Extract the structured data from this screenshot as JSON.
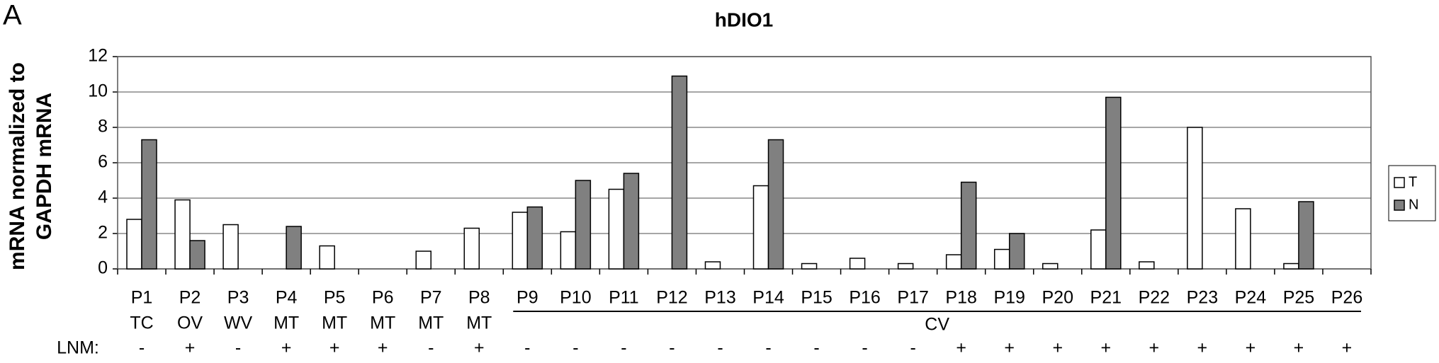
{
  "chart_data": {
    "type": "bar",
    "panel_label": "A",
    "title": "hDIO1",
    "y_label": [
      "mRNA normalized to",
      "GAPDH mRNA"
    ],
    "categories": [
      "P1",
      "P2",
      "P3",
      "P4",
      "P5",
      "P6",
      "P7",
      "P8",
      "P9",
      "P10",
      "P11",
      "P12",
      "P13",
      "P14",
      "P15",
      "P16",
      "P17",
      "P18",
      "P19",
      "P20",
      "P21",
      "P22",
      "P23",
      "P24",
      "P25",
      "P26"
    ],
    "series": [
      {
        "name": "T",
        "color": "#ffffff",
        "values": [
          2.8,
          3.9,
          2.5,
          0,
          1.3,
          0,
          1.0,
          2.3,
          3.2,
          2.1,
          4.5,
          0,
          0.4,
          4.7,
          0.3,
          0.6,
          0.3,
          0.8,
          1.1,
          0.3,
          2.2,
          0.4,
          8.0,
          3.4,
          0.3,
          0
        ]
      },
      {
        "name": "N",
        "color": "#808080",
        "values": [
          7.3,
          1.6,
          0,
          2.4,
          0,
          0,
          0,
          0,
          3.5,
          5.0,
          5.4,
          10.9,
          0,
          7.3,
          0,
          0,
          0,
          4.9,
          2.0,
          0,
          9.7,
          0,
          0,
          0,
          3.8,
          0
        ]
      }
    ],
    "subtypes": [
      "TC",
      "OV",
      "WV",
      "MT",
      "MT",
      "MT",
      "MT",
      "MT"
    ],
    "span_label": "CV",
    "lnm_label": "LNM:",
    "lnm": [
      "-",
      "+",
      "-",
      "+",
      "+",
      "+",
      "-",
      "+",
      "-",
      "-",
      "-",
      "-",
      "-",
      "-",
      "-",
      "-",
      "-",
      "+",
      "+",
      "+",
      "+",
      "+",
      "+",
      "+",
      "+",
      "+"
    ],
    "ylim": [
      0,
      12
    ],
    "yticks": [
      0,
      2,
      4,
      6,
      8,
      10,
      12
    ],
    "grid": true,
    "legend": "right"
  }
}
